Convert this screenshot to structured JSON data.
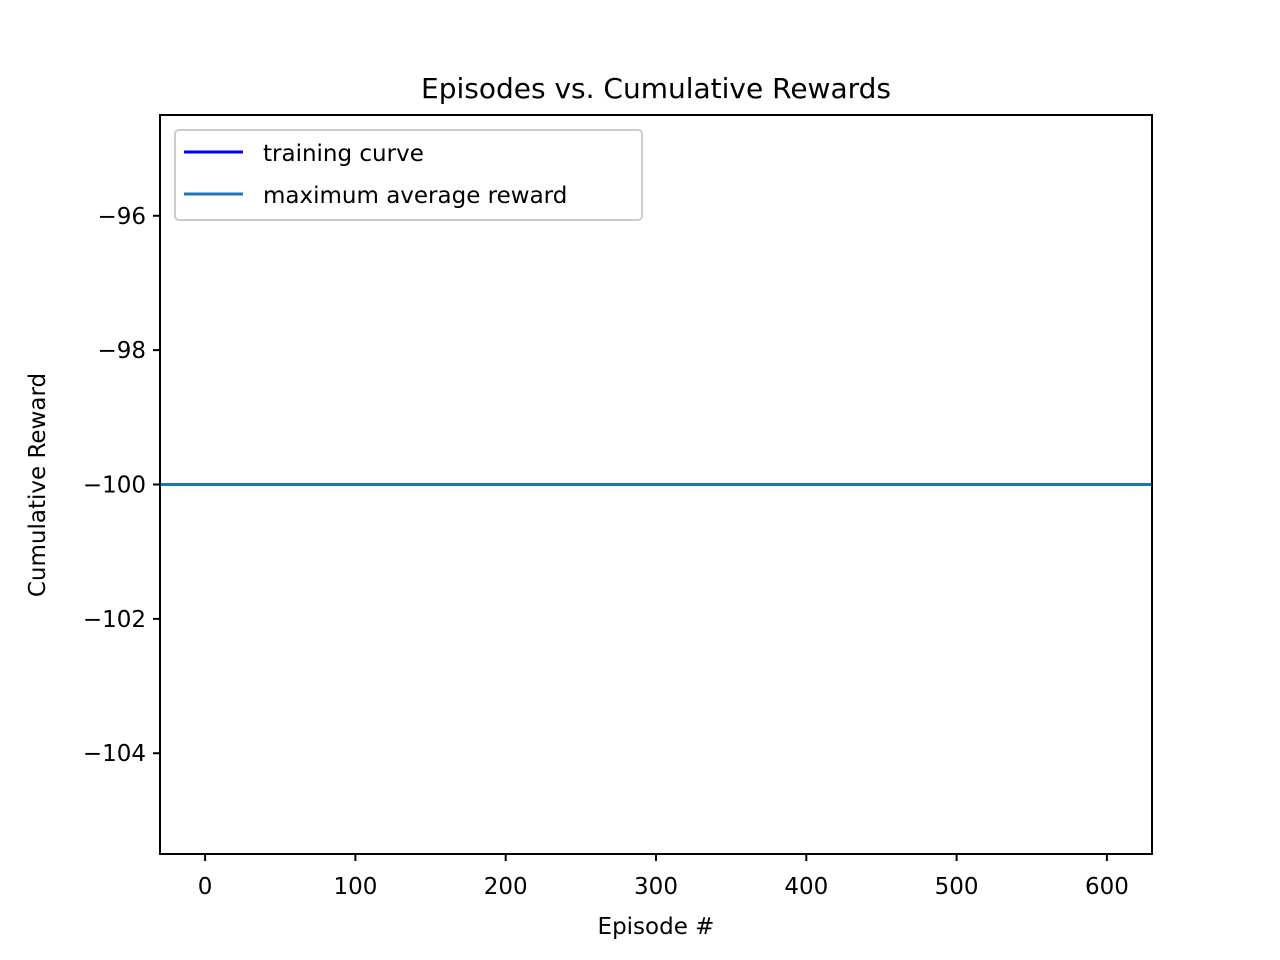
{
  "chart_data": {
    "type": "line",
    "title": "Episodes vs. Cumulative Rewards",
    "xlabel": "Episode #",
    "ylabel": "Cumulative Reward",
    "xlim": [
      -30,
      630
    ],
    "ylim": [
      -105.5,
      -94.5
    ],
    "xticks": [
      0,
      100,
      200,
      300,
      400,
      500,
      600
    ],
    "xtick_labels": [
      "0",
      "100",
      "200",
      "300",
      "400",
      "500",
      "600"
    ],
    "yticks": [
      -96,
      -98,
      -100,
      -102,
      -104
    ],
    "ytick_labels": [
      "−96",
      "−98",
      "−100",
      "−102",
      "−104"
    ],
    "grid": false,
    "legend_position": "top-left",
    "series": [
      {
        "name": "training curve",
        "color": "#0000ff",
        "x": [
          0,
          600
        ],
        "y": [
          -100,
          -100
        ]
      },
      {
        "name": "maximum average reward",
        "color": "#1f77b4",
        "x": [
          -30,
          630
        ],
        "y": [
          -100,
          -100
        ]
      }
    ]
  }
}
